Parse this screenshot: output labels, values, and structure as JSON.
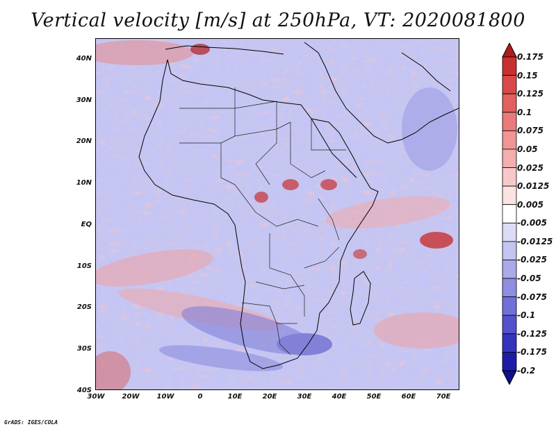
{
  "title": "Vertical velocity [m/s] at 250hPa, VT: 2020081800",
  "footer": "GrADS: IGES/COLA",
  "map": {
    "lon_range": [
      -30,
      75
    ],
    "lat_range": [
      -40,
      45
    ],
    "lat_ticks": [
      "40N",
      "30N",
      "20N",
      "10N",
      "EQ",
      "10S",
      "20S",
      "30S",
      "40S"
    ],
    "lon_ticks": [
      "30W",
      "20W",
      "10W",
      "0",
      "10E",
      "20E",
      "30E",
      "40E",
      "50E",
      "60E",
      "70E"
    ]
  },
  "colorbar": {
    "labels": [
      "0.175",
      "0.15",
      "0.125",
      "0.1",
      "0.075",
      "0.05",
      "0.025",
      "0.0125",
      "0.005",
      "-0.005",
      "-0.0125",
      "-0.025",
      "-0.05",
      "-0.075",
      "-0.1",
      "-0.125",
      "-0.175",
      "-0.2"
    ],
    "colors": [
      "#b01c1c",
      "#c83030",
      "#d84848",
      "#e26060",
      "#ea7a7a",
      "#f09494",
      "#f4aeae",
      "#f8c8c8",
      "#fde2e2",
      "#ffffff",
      "#dcdcf6",
      "#c4c4f0",
      "#aaaaea",
      "#8e8ee2",
      "#7070d8",
      "#5252cc",
      "#3434bc",
      "#1c1ca8",
      "#10108c"
    ]
  }
}
